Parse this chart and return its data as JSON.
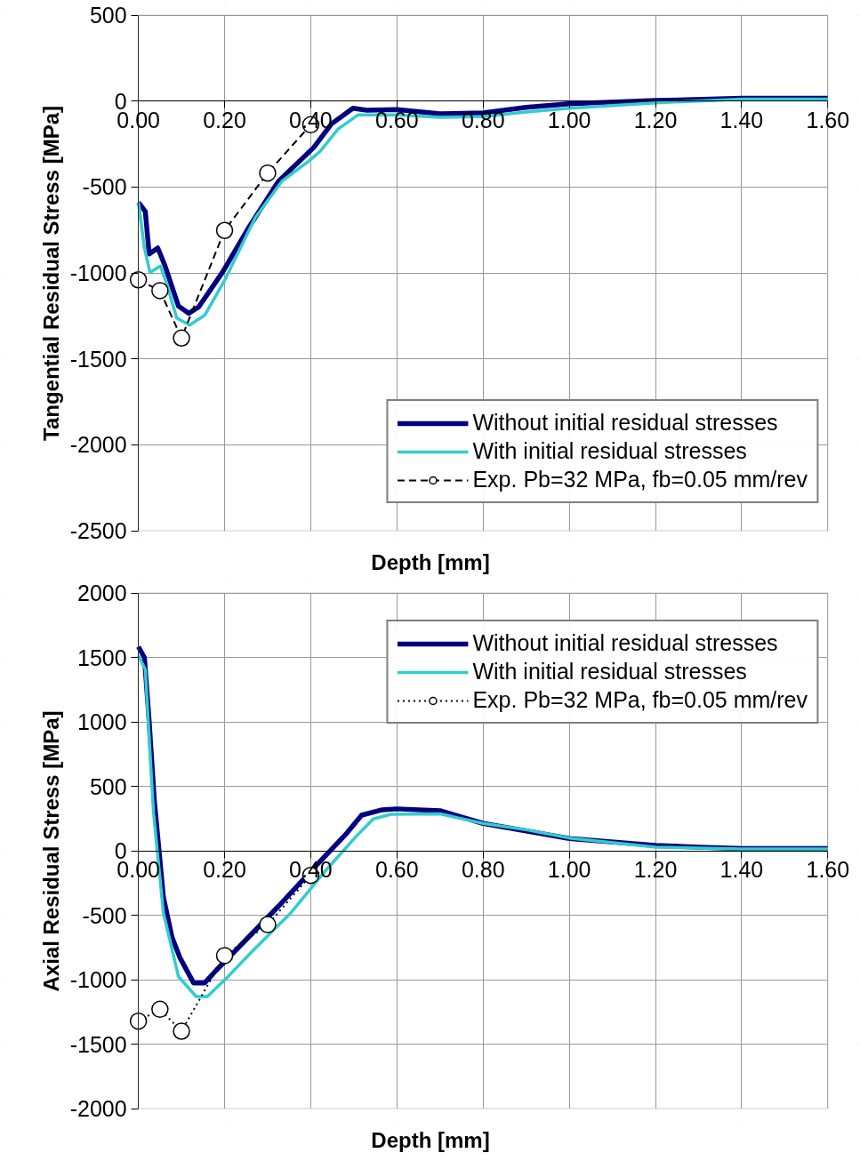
{
  "chart_data": [
    {
      "type": "line",
      "xlabel": "Depth [mm]",
      "ylabel": "Tangential Residual Stress [MPa]",
      "xlim": [
        0,
        1.6
      ],
      "ylim": [
        -2500,
        500
      ],
      "xticks": [
        {
          "value": 0,
          "label": "0.00"
        },
        {
          "value": 0.2,
          "label": "0.20"
        },
        {
          "value": 0.4,
          "label": "0.40"
        },
        {
          "value": 0.6,
          "label": "0.60"
        },
        {
          "value": 0.8,
          "label": "0.80"
        },
        {
          "value": 1.0,
          "label": "1.00"
        },
        {
          "value": 1.2,
          "label": "1.20"
        },
        {
          "value": 1.4,
          "label": "1.40"
        },
        {
          "value": 1.6,
          "label": "1.60"
        }
      ],
      "yticks": [
        -2500,
        -2000,
        -1500,
        -1000,
        -500,
        0,
        500
      ],
      "grid": true,
      "legend": "bottom right",
      "series": [
        {
          "name": "Without initial residual stresses",
          "color": "#000080",
          "marker": "none",
          "line_style": "solid",
          "x": [
            0,
            0.016,
            0.025,
            0.045,
            0.062,
            0.093,
            0.117,
            0.14,
            0.195,
            0.257,
            0.325,
            0.407,
            0.448,
            0.498,
            0.53,
            0.6,
            0.7,
            0.8,
            0.9,
            1.0,
            1.2,
            1.4,
            1.6
          ],
          "values": [
            -589,
            -642,
            -890,
            -855,
            -960,
            -1193,
            -1235,
            -1198,
            -997,
            -732,
            -467,
            -270,
            -133,
            -42,
            -53,
            -50,
            -74,
            -69,
            -37,
            -16,
            3,
            16,
            16
          ]
        },
        {
          "name": "With initial residual stresses",
          "color": "#33cccc",
          "marker": "none",
          "line_style": "solid",
          "x": [
            0,
            0.014,
            0.027,
            0.051,
            0.066,
            0.089,
            0.119,
            0.154,
            0.202,
            0.271,
            0.333,
            0.395,
            0.422,
            0.463,
            0.51,
            0.6,
            0.7,
            0.8,
            0.9,
            1.0,
            1.2,
            1.4,
            1.6
          ],
          "values": [
            -589,
            -855,
            -997,
            -960,
            -1066,
            -1262,
            -1304,
            -1246,
            -1034,
            -679,
            -467,
            -350,
            -292,
            -164,
            -80,
            -80,
            -95,
            -90,
            -64,
            -42,
            -11,
            11,
            11
          ]
        },
        {
          "name": "Exp. Pb=32 MPa, fb=0.05 mm/rev",
          "color": "#000000",
          "marker": "circle",
          "line_style": "dashed",
          "x": [
            0,
            0.05,
            0.1,
            0.2,
            0.3,
            0.4
          ],
          "values": [
            -1040,
            -1103,
            -1379,
            -753,
            -419,
            -138
          ]
        }
      ]
    },
    {
      "type": "line",
      "xlabel": "Depth [mm]",
      "ylabel": "Axial Residual Stress [MPa]",
      "xlim": [
        0,
        1.6
      ],
      "ylim": [
        -2000,
        2000
      ],
      "xticks": [
        {
          "value": 0,
          "label": "0.00"
        },
        {
          "value": 0.2,
          "label": "0.20"
        },
        {
          "value": 0.4,
          "label": "0.40"
        },
        {
          "value": 0.6,
          "label": "0.60"
        },
        {
          "value": 0.8,
          "label": "0.80"
        },
        {
          "value": 1.0,
          "label": "1.00"
        },
        {
          "value": 1.2,
          "label": "1.20"
        },
        {
          "value": 1.4,
          "label": "1.40"
        },
        {
          "value": 1.6,
          "label": "1.60"
        }
      ],
      "yticks": [
        -2000,
        -1500,
        -1000,
        -500,
        0,
        500,
        1000,
        1500,
        2000
      ],
      "grid": true,
      "legend": "top right",
      "series": [
        {
          "name": "Without initial residual stresses",
          "color": "#000080",
          "marker": "none",
          "line_style": "solid",
          "x": [
            0,
            0.014,
            0.025,
            0.037,
            0.058,
            0.078,
            0.097,
            0.128,
            0.154,
            0.181,
            0.243,
            0.325,
            0.415,
            0.483,
            0.518,
            0.566,
            0.6,
            0.7,
            0.8,
            1.0,
            1.2,
            1.3,
            1.4,
            1.6
          ],
          "values": [
            1583,
            1498,
            1004,
            389,
            -360,
            -671,
            -834,
            -1025,
            -1025,
            -926,
            -714,
            -431,
            -106,
            134,
            276,
            318,
            325,
            311,
            212,
            95,
            42,
            28,
            18,
            18
          ]
        },
        {
          "name": "With initial residual stresses",
          "color": "#33cccc",
          "marker": "none",
          "line_style": "solid",
          "x": [
            0,
            0.016,
            0.035,
            0.058,
            0.093,
            0.134,
            0.16,
            0.202,
            0.263,
            0.354,
            0.436,
            0.504,
            0.545,
            0.586,
            0.7,
            0.8,
            0.9,
            1.0,
            1.2,
            1.4,
            1.6
          ],
          "values": [
            1513,
            1407,
            297,
            -481,
            -976,
            -1131,
            -1131,
            -997,
            -785,
            -481,
            -148,
            106,
            247,
            283,
            286,
            212,
            163,
            99,
            28,
            14,
            14
          ]
        },
        {
          "name": "Exp. Pb=32 MPa, fb=0.05 mm/rev",
          "color": "#000000",
          "marker": "circle",
          "line_style": "dotted",
          "x": [
            0,
            0.05,
            0.1,
            0.2,
            0.3,
            0.4
          ],
          "values": [
            -1322,
            -1230,
            -1400,
            -813,
            -573,
            -191
          ]
        }
      ]
    }
  ]
}
